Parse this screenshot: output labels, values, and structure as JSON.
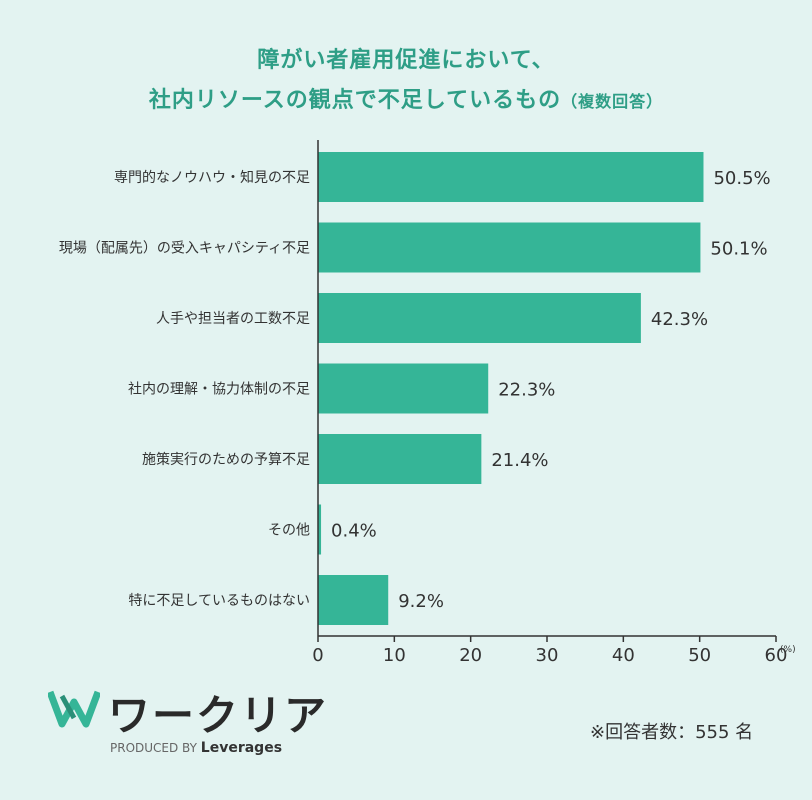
{
  "title": {
    "line1": "障がい者雇用促進において、",
    "line2_main": "社内リソースの観点で不足しているもの",
    "line2_sub": "（複数回答）"
  },
  "chart_data": {
    "type": "bar",
    "orientation": "horizontal",
    "categories": [
      "専門的なノウハウ・知見の不足",
      "現場（配属先）の受入キャパシティ不足",
      "人手や担当者の工数不足",
      "社内の理解・協力体制の不足",
      "施策実行のための予算不足",
      "その他",
      "特に不足しているものはない"
    ],
    "values": [
      50.5,
      50.1,
      42.3,
      22.3,
      21.4,
      0.4,
      9.2
    ],
    "value_labels": [
      "50.5%",
      "50.1%",
      "42.3%",
      "22.3%",
      "21.4%",
      "0.4%",
      "9.2%"
    ],
    "xlim": [
      0,
      60
    ],
    "xticks": [
      "0",
      "10",
      "20",
      "30",
      "40",
      "50",
      "60"
    ],
    "x_unit": "(%)",
    "bar_color": "#35b597",
    "grid": false
  },
  "logo": {
    "name": "ワークリア",
    "byline_prefix": "PRODUCED BY",
    "byline_brand": "Leverages"
  },
  "note": "※回答者数：555 名",
  "colors": {
    "accent": "#2e9e86",
    "background": "#e3f3f1"
  }
}
